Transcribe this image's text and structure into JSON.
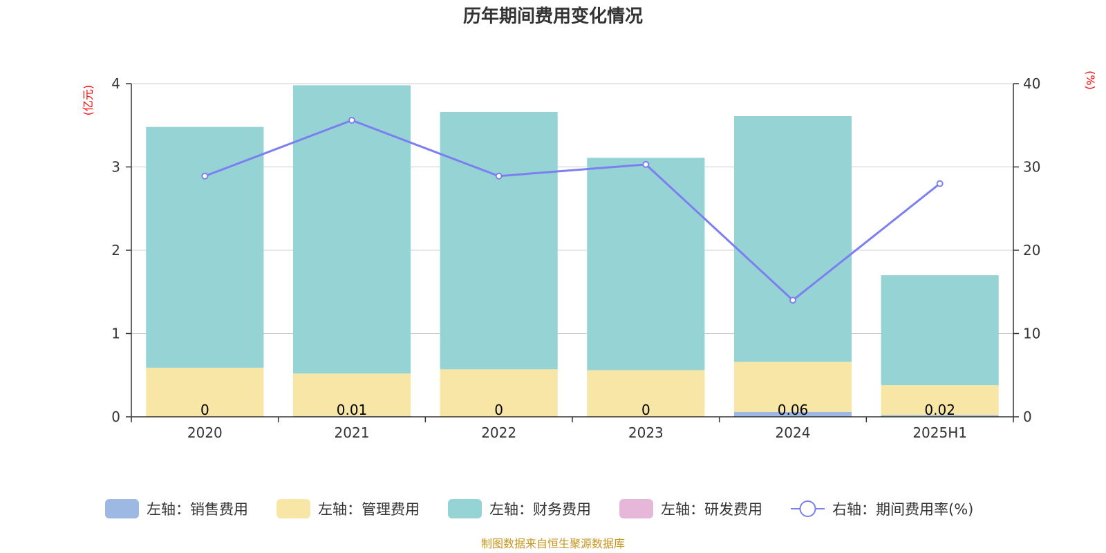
{
  "colors": {
    "sales": "#9db8e3",
    "admin": "#f7e6a6",
    "finance": "#96d3d4",
    "rd": "#e7b7da",
    "rate_line": "#7b7ff0",
    "axis_unit": "#ff0000",
    "source": "#c8961e",
    "grid": "#cccccc"
  },
  "source_note": "制图数据来自恒生聚源数据库",
  "chart_data": {
    "type": "bar",
    "stacked": true,
    "title": "历年期间费用变化情况",
    "categories": [
      "2020",
      "2021",
      "2022",
      "2023",
      "2024",
      "2025H1"
    ],
    "left_axis": {
      "unit": "(亿元)",
      "range": [
        0,
        4
      ],
      "ticks": [
        "0",
        "1",
        "2",
        "3",
        "4"
      ]
    },
    "right_axis": {
      "unit": "(%)",
      "range": [
        0,
        40
      ],
      "ticks": [
        "0",
        "10",
        "20",
        "30",
        "40"
      ]
    },
    "grid": true,
    "legend_position": "bottom",
    "series": [
      {
        "name": "左轴：销售费用",
        "key": "sales",
        "axis": "left",
        "values": [
          0,
          0.01,
          0,
          0,
          0.06,
          0.02
        ],
        "labels": [
          "0",
          "0.01",
          "0",
          "0",
          "0.06",
          "0.02"
        ]
      },
      {
        "name": "左轴：管理费用",
        "key": "admin",
        "axis": "left",
        "values": [
          0.59,
          0.51,
          0.57,
          0.56,
          0.6,
          0.36
        ]
      },
      {
        "name": "左轴：财务费用",
        "key": "finance",
        "axis": "left",
        "values": [
          2.89,
          3.46,
          3.09,
          2.55,
          2.95,
          1.32
        ]
      },
      {
        "name": "左轴：研发费用",
        "key": "rd",
        "axis": "left",
        "values": [
          0,
          0,
          0,
          0,
          0,
          0
        ]
      },
      {
        "name": "右轴：期间费用率(%)",
        "key": "rate",
        "axis": "right",
        "type": "line",
        "values": [
          28.9,
          35.6,
          28.9,
          30.3,
          14.0,
          28.0
        ]
      }
    ]
  }
}
